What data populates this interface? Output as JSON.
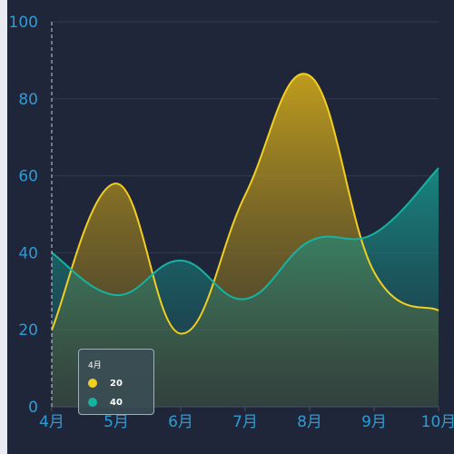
{
  "chart_data": {
    "type": "area",
    "categories": [
      "4月",
      "5月",
      "6月",
      "7月",
      "8月",
      "9月",
      "10月"
    ],
    "ylim": [
      0,
      100
    ],
    "yticks": [
      0,
      20,
      40,
      60,
      80,
      100
    ],
    "grid": true,
    "series": [
      {
        "values": [
          20,
          58,
          19,
          55,
          86,
          35,
          25
        ],
        "color": "#f2cf1f"
      },
      {
        "values": [
          40,
          29,
          38,
          28,
          43,
          45,
          62
        ],
        "color": "#16b3a0"
      }
    ],
    "tooltip": {
      "title": "4月",
      "items": [
        {
          "value": "20",
          "color": "#f2cf1f"
        },
        {
          "value": "40",
          "color": "#16b3a0"
        }
      ]
    }
  }
}
